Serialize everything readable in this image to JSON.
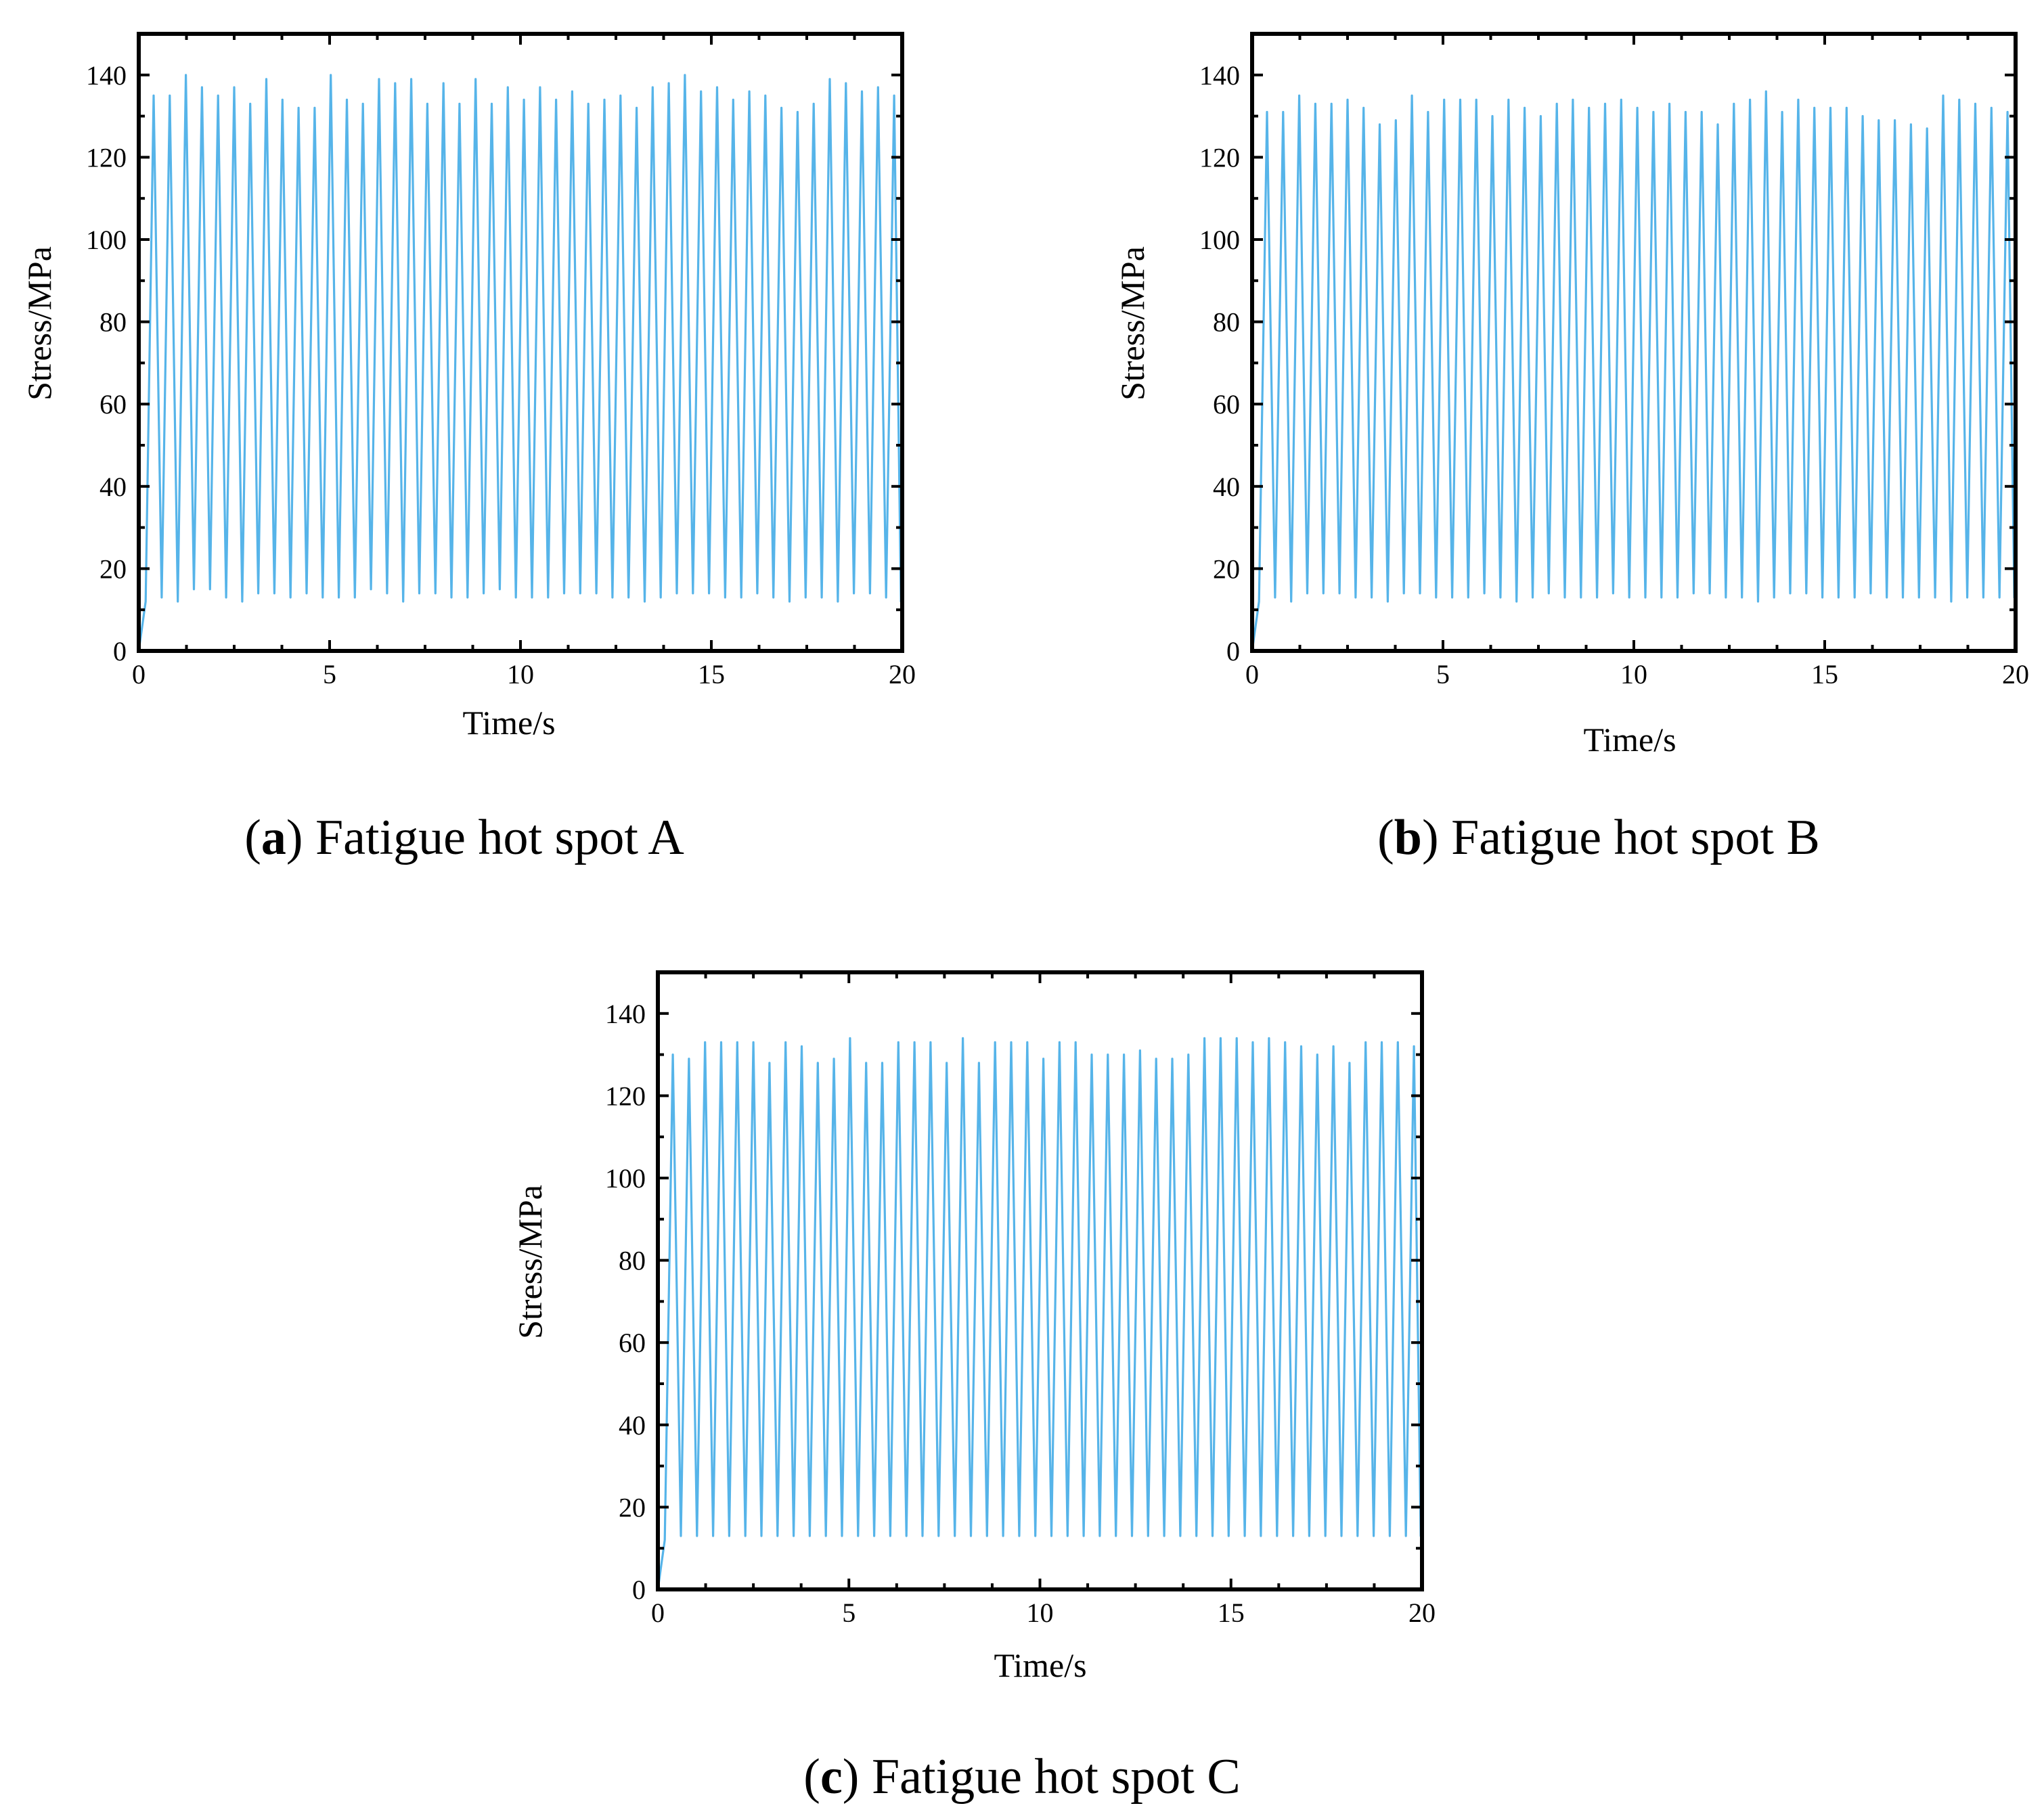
{
  "figure": {
    "line_color": "#56B4E9",
    "axis_color": "#000000"
  },
  "chart_data": [
    {
      "id": "a",
      "type": "line",
      "title": "Fatigue hot spot A",
      "caption_letter": "a",
      "xlabel": "Time/s",
      "ylabel": "Stress/MPa",
      "xlim": [
        0,
        20
      ],
      "ylim": [
        0,
        150
      ],
      "xticks": [
        0,
        5,
        10,
        15,
        20
      ],
      "yticks": [
        0,
        20,
        40,
        60,
        80,
        100,
        120,
        140
      ],
      "cycles": 47,
      "start": {
        "t": 0.18,
        "y": 12
      },
      "peaks": [
        135,
        135,
        140,
        137,
        135,
        137,
        133,
        139,
        134,
        132,
        132,
        140,
        134,
        133,
        139,
        138,
        139,
        133,
        138,
        133,
        139,
        133,
        137,
        134,
        137,
        134,
        136,
        133,
        134,
        135,
        132,
        137,
        138,
        140,
        136,
        137,
        134,
        136,
        135,
        132,
        131,
        133,
        139,
        138,
        136,
        137,
        135
      ],
      "troughs": [
        13,
        12,
        15,
        15,
        13,
        12,
        14,
        14,
        13,
        14,
        13,
        13,
        13,
        15,
        14,
        12,
        14,
        14,
        13,
        13,
        14,
        15,
        13,
        13,
        13,
        14,
        14,
        14,
        13,
        13,
        12,
        13,
        14,
        14,
        14,
        13,
        13,
        14,
        13,
        12,
        13,
        13,
        12,
        14,
        14,
        13,
        12
      ]
    },
    {
      "id": "b",
      "type": "line",
      "title": "Fatigue hot spot B",
      "caption_letter": "b",
      "xlabel": "Time/s",
      "ylabel": "Stress/MPa",
      "xlim": [
        0,
        20
      ],
      "ylim": [
        0,
        150
      ],
      "xticks": [
        0,
        5,
        10,
        15,
        20
      ],
      "yticks": [
        0,
        20,
        40,
        60,
        80,
        100,
        120,
        140
      ],
      "cycles": 47,
      "start": {
        "t": 0.18,
        "y": 12
      },
      "peaks": [
        131,
        131,
        135,
        133,
        133,
        134,
        132,
        128,
        129,
        135,
        131,
        134,
        134,
        134,
        130,
        134,
        132,
        130,
        133,
        134,
        132,
        133,
        134,
        132,
        131,
        133,
        131,
        131,
        128,
        133,
        134,
        136,
        131,
        134,
        132,
        132,
        132,
        130,
        129,
        129,
        128,
        127,
        135,
        134,
        133,
        132,
        131
      ],
      "troughs": [
        13,
        12,
        14,
        14,
        14,
        13,
        13,
        12,
        14,
        14,
        13,
        13,
        13,
        14,
        13,
        12,
        13,
        14,
        13,
        13,
        13,
        14,
        13,
        13,
        13,
        13,
        14,
        14,
        13,
        13,
        12,
        13,
        14,
        14,
        13,
        13,
        13,
        14,
        13,
        13,
        13,
        13,
        12,
        13,
        13,
        13,
        13
      ]
    },
    {
      "id": "c",
      "type": "line",
      "title": "Fatigue hot spot C",
      "caption_letter": "c",
      "xlabel": "Time/s",
      "ylabel": "Stress/MPa",
      "xlim": [
        0,
        20
      ],
      "ylim": [
        0,
        150
      ],
      "xticks": [
        0,
        5,
        10,
        15,
        20
      ],
      "yticks": [
        0,
        20,
        40,
        60,
        80,
        100,
        120,
        140
      ],
      "cycles": 47,
      "start": {
        "t": 0.18,
        "y": 12
      },
      "peaks": [
        130,
        129,
        133,
        133,
        133,
        133,
        128,
        133,
        132,
        128,
        129,
        134,
        128,
        128,
        133,
        133,
        133,
        128,
        134,
        128,
        133,
        133,
        133,
        129,
        133,
        133,
        130,
        130,
        130,
        131,
        129,
        129,
        130,
        134,
        134,
        134,
        133,
        134,
        133,
        132,
        130,
        132,
        128,
        133,
        133,
        133,
        132
      ],
      "troughs": [
        13,
        13,
        13,
        13,
        13,
        13,
        13,
        13,
        13,
        13,
        13,
        13,
        13,
        13,
        13,
        13,
        13,
        13,
        13,
        13,
        13,
        13,
        13,
        13,
        13,
        13,
        13,
        13,
        13,
        13,
        13,
        13,
        13,
        13,
        13,
        13,
        13,
        13,
        13,
        13,
        13,
        13,
        13,
        13,
        13,
        13,
        13
      ]
    }
  ]
}
